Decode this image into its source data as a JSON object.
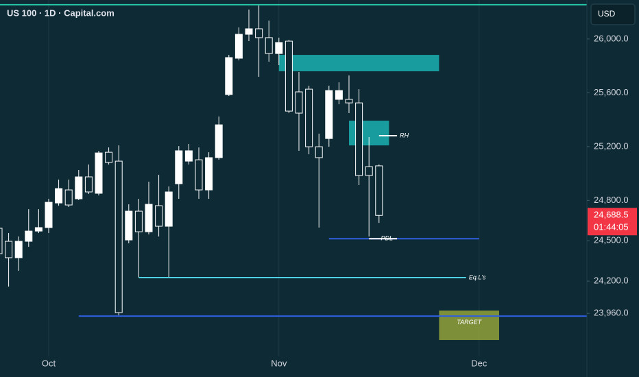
{
  "chart_data": {
    "type": "candlestick",
    "title": "US 100 · 1D · Capital.com",
    "currency": "USD",
    "categories": [
      null,
      null,
      null,
      null,
      null,
      null,
      null,
      null,
      null,
      null,
      null,
      null,
      null,
      null,
      null,
      null,
      null,
      null,
      null,
      null,
      null,
      null,
      null,
      null,
      null,
      null,
      null,
      null,
      null,
      null,
      null,
      null,
      null,
      null,
      null,
      null,
      null,
      null,
      null
    ],
    "open": [
      24593,
      24496,
      24374,
      24496,
      24572,
      24598,
      24781,
      24878,
      24812,
      24975,
      24853,
      25158,
      25092,
      24506,
      24720,
      24567,
      24761,
      24608,
      24924,
      25092,
      25102,
      24878,
      25118,
      25587,
      25857,
      26035,
      26076,
      26010,
      25892,
      25984,
      25607,
      25627,
      25199,
      25260,
      25551,
      25551,
      25525,
      25051,
      25057
    ],
    "high": [
      24659,
      24557,
      24532,
      24735,
      24735,
      24812,
      24955,
      24955,
      25026,
      25067,
      25169,
      25194,
      25209,
      24771,
      24812,
      24939,
      24990,
      24904,
      25204,
      25220,
      25194,
      25158,
      25424,
      25882,
      26086,
      26219,
      26249,
      26137,
      26010,
      25994,
      25755,
      25653,
      25296,
      25653,
      25678,
      25729,
      25627,
      25271,
      25067
    ],
    "low": [
      24328,
      24159,
      24277,
      24455,
      24557,
      24557,
      24761,
      24751,
      24802,
      24848,
      24837,
      25067,
      23945,
      24481,
      24226,
      24547,
      24532,
      24226,
      24812,
      25067,
      24812,
      24812,
      25102,
      25576,
      25841,
      25984,
      25719,
      25831,
      25806,
      25449,
      25169,
      25143,
      24598,
      25199,
      25515,
      25449,
      24914,
      24532,
      24633
    ],
    "close": [
      24404,
      24374,
      24496,
      24572,
      24598,
      24786,
      24888,
      24766,
      24975,
      24863,
      25153,
      25082,
      23966,
      24720,
      24567,
      24771,
      24608,
      24863,
      25169,
      25169,
      24878,
      25118,
      25362,
      25862,
      26035,
      26076,
      26010,
      25892,
      25974,
      25464,
      25449,
      25199,
      25118,
      25617,
      25617,
      25525,
      24985,
      24985,
      24688.5
    ],
    "ylim": [
      23640,
      26290
    ],
    "yticks": [
      {
        "value": 26000,
        "label": "26,000.0"
      },
      {
        "value": 25600,
        "label": "25,600.0"
      },
      {
        "value": 25200,
        "label": "25,200.0"
      },
      {
        "value": 24800,
        "label": "24,800.0"
      },
      {
        "value": 24500,
        "label": "24,500.0"
      },
      {
        "value": 24200,
        "label": "24,200.0"
      },
      {
        "value": 23960,
        "label": "23,960.0"
      }
    ],
    "xticks": [
      {
        "value": 5,
        "label": "Oct"
      },
      {
        "value": 28,
        "label": "Nov"
      },
      {
        "value": 48,
        "label": "Dec"
      }
    ],
    "last_price": {
      "value": 24688.5,
      "label": "24,688.5"
    },
    "countdown": "01:44:05",
    "colors": {
      "up": "#ffffff",
      "down": "#0e2a35",
      "outline": "#ffffff",
      "last_price": "#f23645"
    },
    "levels": [
      {
        "value": 26255,
        "color": "#26c6a6"
      },
      {
        "value": 24226,
        "from": 14,
        "to": 46.7,
        "color": "#4dd0e1",
        "label": "Eq.L's"
      },
      {
        "value": 24515,
        "from": 33,
        "to": 48,
        "color": "#2f5fe0",
        "label": "PDL"
      },
      {
        "value": 24515,
        "from": 37,
        "to": 39.8,
        "color": "#ffffff"
      },
      {
        "value": 25281,
        "from": 38,
        "to": 39.8,
        "color": "#ffffff",
        "label": "RH"
      },
      {
        "value": 23940,
        "from": 8,
        "color": "#2f5fe0"
      }
    ],
    "zones": [
      {
        "from": 28,
        "to": 44,
        "low": 25760,
        "high": 25882,
        "color": "#19a8a8"
      },
      {
        "from": 35,
        "to": 39,
        "low": 25209,
        "high": 25393,
        "color": "#19a8a8"
      },
      {
        "from": 44,
        "to": 50,
        "low": 23762,
        "high": 23981,
        "color": "#8b9a3b",
        "label": "TARGET"
      }
    ]
  }
}
